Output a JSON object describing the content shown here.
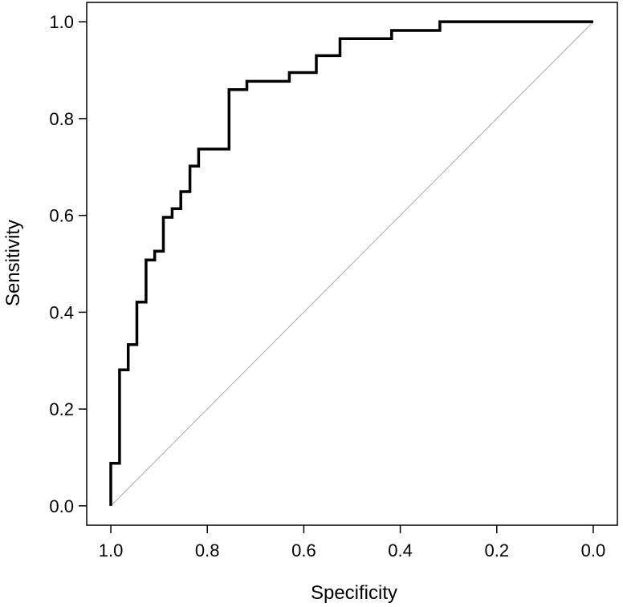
{
  "chart_data": {
    "type": "line",
    "title": "",
    "xlabel": "Specificity",
    "ylabel": "Sensitivity",
    "xlim": [
      1.05,
      -0.05
    ],
    "ylim": [
      -0.04,
      1.04
    ],
    "x_reversed": true,
    "grid": false,
    "legend": "none",
    "xticks": [
      1.0,
      0.8,
      0.6,
      0.4,
      0.2,
      0.0
    ],
    "yticks": [
      0.0,
      0.2,
      0.4,
      0.6,
      0.8,
      1.0
    ],
    "xtick_labels": [
      "1.0",
      "0.8",
      "0.6",
      "0.4",
      "0.2",
      "0.0"
    ],
    "ytick_labels": [
      "0.0",
      "0.2",
      "0.4",
      "0.6",
      "0.8",
      "1.0"
    ],
    "reference_line": {
      "from": [
        1.0,
        0.0
      ],
      "to": [
        0.0,
        1.0
      ],
      "color": "#aaaaaa"
    },
    "series": [
      {
        "color": "#000000",
        "points": [
          [
            1.0,
            0.0
          ],
          [
            1.0,
            0.088
          ],
          [
            0.982,
            0.088
          ],
          [
            0.982,
            0.281
          ],
          [
            0.964,
            0.281
          ],
          [
            0.964,
            0.333
          ],
          [
            0.946,
            0.333
          ],
          [
            0.946,
            0.421
          ],
          [
            0.927,
            0.421
          ],
          [
            0.927,
            0.508
          ],
          [
            0.909,
            0.508
          ],
          [
            0.909,
            0.526
          ],
          [
            0.891,
            0.526
          ],
          [
            0.891,
            0.596
          ],
          [
            0.873,
            0.596
          ],
          [
            0.873,
            0.614
          ],
          [
            0.855,
            0.614
          ],
          [
            0.855,
            0.649
          ],
          [
            0.836,
            0.649
          ],
          [
            0.836,
            0.702
          ],
          [
            0.818,
            0.702
          ],
          [
            0.818,
            0.737
          ],
          [
            0.755,
            0.737
          ],
          [
            0.755,
            0.86
          ],
          [
            0.718,
            0.86
          ],
          [
            0.718,
            0.877
          ],
          [
            0.63,
            0.877
          ],
          [
            0.63,
            0.895
          ],
          [
            0.574,
            0.895
          ],
          [
            0.574,
            0.93
          ],
          [
            0.525,
            0.93
          ],
          [
            0.525,
            0.965
          ],
          [
            0.418,
            0.965
          ],
          [
            0.418,
            0.982
          ],
          [
            0.318,
            0.982
          ],
          [
            0.318,
            1.0
          ],
          [
            0.0,
            1.0
          ]
        ]
      }
    ]
  }
}
